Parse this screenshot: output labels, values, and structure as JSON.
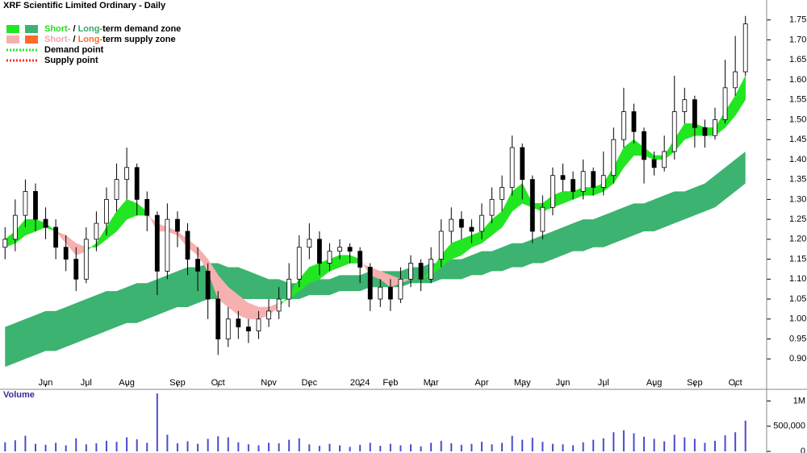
{
  "chart_data": {
    "type": "candlestick",
    "title": "XRF Scientific Limited Ordinary - Daily",
    "categories": [
      null,
      null,
      null,
      null,
      "Jun",
      null,
      null,
      null,
      "Jul",
      null,
      null,
      null,
      "Aug",
      null,
      null,
      null,
      null,
      "Sep",
      null,
      null,
      null,
      "Oct",
      null,
      null,
      null,
      null,
      "Nov",
      null,
      null,
      null,
      "Dec",
      null,
      null,
      null,
      null,
      "2024",
      null,
      null,
      "Feb",
      null,
      null,
      null,
      "Mar",
      null,
      null,
      null,
      null,
      "Apr",
      null,
      null,
      null,
      "May",
      null,
      null,
      null,
      "Jun",
      null,
      null,
      null,
      "Jul",
      null,
      null,
      null,
      null,
      "Aug",
      null,
      null,
      null,
      "Sep",
      null,
      null,
      null,
      "Oct",
      null
    ],
    "open": [
      1.18,
      1.2,
      1.26,
      1.32,
      1.25,
      1.23,
      1.18,
      1.15,
      1.1,
      1.2,
      1.24,
      1.3,
      1.35,
      1.38,
      1.3,
      1.26,
      1.12,
      1.25,
      1.22,
      1.15,
      1.12,
      1.05,
      0.95,
      1.0,
      0.98,
      0.97,
      1.0,
      1.02,
      1.05,
      1.1,
      1.18,
      1.2,
      1.14,
      1.17,
      1.18,
      1.17,
      1.13,
      1.05,
      1.08,
      1.05,
      1.1,
      1.14,
      1.1,
      1.15,
      1.22,
      1.25,
      1.23,
      1.22,
      1.26,
      1.3,
      1.33,
      1.43,
      1.35,
      1.22,
      1.28,
      1.36,
      1.35,
      1.32,
      1.37,
      1.33,
      1.36,
      1.45,
      1.52,
      1.47,
      1.4,
      1.38,
      1.42,
      1.52,
      1.55,
      1.48,
      1.46,
      1.5,
      1.58,
      1.62
    ],
    "high": [
      1.23,
      1.3,
      1.35,
      1.34,
      1.28,
      1.25,
      1.21,
      1.18,
      1.23,
      1.27,
      1.33,
      1.39,
      1.43,
      1.39,
      1.32,
      1.27,
      1.29,
      1.27,
      1.24,
      1.18,
      1.14,
      1.07,
      1.03,
      1.02,
      1.0,
      1.02,
      1.05,
      1.08,
      1.14,
      1.21,
      1.24,
      1.22,
      1.19,
      1.2,
      1.19,
      1.18,
      1.14,
      1.1,
      1.1,
      1.13,
      1.16,
      1.15,
      1.18,
      1.25,
      1.28,
      1.27,
      1.25,
      1.29,
      1.33,
      1.36,
      1.46,
      1.44,
      1.36,
      1.31,
      1.38,
      1.39,
      1.37,
      1.4,
      1.38,
      1.42,
      1.48,
      1.58,
      1.54,
      1.48,
      1.42,
      1.46,
      1.61,
      1.58,
      1.56,
      1.5,
      1.53,
      1.65,
      1.71,
      1.76
    ],
    "low": [
      1.15,
      1.17,
      1.23,
      1.22,
      1.2,
      1.15,
      1.12,
      1.07,
      1.09,
      1.17,
      1.21,
      1.27,
      1.3,
      1.26,
      1.22,
      1.06,
      1.1,
      1.18,
      1.11,
      1.07,
      1.0,
      0.91,
      0.93,
      0.95,
      0.94,
      0.95,
      0.98,
      1.0,
      1.03,
      1.08,
      1.15,
      1.11,
      1.12,
      1.15,
      1.14,
      1.09,
      1.02,
      1.03,
      1.02,
      1.04,
      1.08,
      1.07,
      1.09,
      1.13,
      1.19,
      1.2,
      1.19,
      1.2,
      1.24,
      1.27,
      1.31,
      1.3,
      1.19,
      1.2,
      1.26,
      1.32,
      1.3,
      1.3,
      1.31,
      1.31,
      1.34,
      1.43,
      1.44,
      1.34,
      1.36,
      1.37,
      1.4,
      1.49,
      1.43,
      1.43,
      1.45,
      1.49,
      1.56,
      1.61
    ],
    "close": [
      1.2,
      1.26,
      1.32,
      1.25,
      1.23,
      1.18,
      1.15,
      1.1,
      1.2,
      1.24,
      1.3,
      1.35,
      1.38,
      1.3,
      1.26,
      1.12,
      1.25,
      1.22,
      1.15,
      1.12,
      1.05,
      0.95,
      1.0,
      0.98,
      0.97,
      1.0,
      1.02,
      1.05,
      1.1,
      1.18,
      1.2,
      1.14,
      1.17,
      1.18,
      1.17,
      1.13,
      1.05,
      1.08,
      1.05,
      1.1,
      1.14,
      1.1,
      1.15,
      1.22,
      1.25,
      1.23,
      1.22,
      1.26,
      1.3,
      1.33,
      1.43,
      1.35,
      1.22,
      1.28,
      1.36,
      1.35,
      1.32,
      1.37,
      1.33,
      1.36,
      1.45,
      1.52,
      1.47,
      1.4,
      1.38,
      1.42,
      1.52,
      1.55,
      1.48,
      1.46,
      1.5,
      1.58,
      1.62,
      1.74
    ],
    "up_color": "#ffffff",
    "down_color": "#000000",
    "short_zone": {
      "fast": [
        1.2,
        1.22,
        1.25,
        1.25,
        1.24,
        1.22,
        1.19,
        1.16,
        1.17,
        1.19,
        1.23,
        1.27,
        1.3,
        1.29,
        1.27,
        1.22,
        1.22,
        1.21,
        1.18,
        1.16,
        1.12,
        1.05,
        1.03,
        1.01,
        1.0,
        1.0,
        1.01,
        1.03,
        1.06,
        1.1,
        1.13,
        1.14,
        1.15,
        1.16,
        1.16,
        1.15,
        1.11,
        1.1,
        1.08,
        1.09,
        1.1,
        1.1,
        1.12,
        1.16,
        1.19,
        1.2,
        1.21,
        1.22,
        1.25,
        1.27,
        1.32,
        1.34,
        1.29,
        1.29,
        1.31,
        1.32,
        1.32,
        1.33,
        1.33,
        1.34,
        1.38,
        1.43,
        1.45,
        1.43,
        1.41,
        1.41,
        1.45,
        1.49,
        1.49,
        1.48,
        1.48,
        1.52,
        1.56,
        1.61
      ],
      "slow": [
        1.18,
        1.19,
        1.21,
        1.22,
        1.23,
        1.22,
        1.21,
        1.19,
        1.18,
        1.18,
        1.2,
        1.22,
        1.25,
        1.26,
        1.26,
        1.24,
        1.23,
        1.22,
        1.2,
        1.18,
        1.15,
        1.11,
        1.08,
        1.06,
        1.04,
        1.03,
        1.03,
        1.04,
        1.05,
        1.07,
        1.09,
        1.1,
        1.12,
        1.13,
        1.14,
        1.14,
        1.13,
        1.12,
        1.11,
        1.1,
        1.1,
        1.1,
        1.11,
        1.13,
        1.15,
        1.16,
        1.18,
        1.19,
        1.21,
        1.23,
        1.27,
        1.29,
        1.28,
        1.27,
        1.28,
        1.29,
        1.3,
        1.31,
        1.31,
        1.32,
        1.34,
        1.38,
        1.41,
        1.41,
        1.4,
        1.4,
        1.42,
        1.45,
        1.46,
        1.46,
        1.46,
        1.48,
        1.51,
        1.55
      ],
      "demand_color": "#22e622",
      "supply_color": "#f7b0b0"
    },
    "long_zone": {
      "upper": [
        0.98,
        0.99,
        1.0,
        1.01,
        1.02,
        1.02,
        1.03,
        1.04,
        1.05,
        1.06,
        1.07,
        1.07,
        1.08,
        1.09,
        1.09,
        1.1,
        1.11,
        1.12,
        1.13,
        1.13,
        1.14,
        1.14,
        1.13,
        1.13,
        1.12,
        1.11,
        1.1,
        1.1,
        1.09,
        1.09,
        1.1,
        1.1,
        1.1,
        1.11,
        1.11,
        1.11,
        1.12,
        1.12,
        1.12,
        1.12,
        1.13,
        1.13,
        1.14,
        1.14,
        1.15,
        1.15,
        1.16,
        1.17,
        1.17,
        1.18,
        1.19,
        1.19,
        1.2,
        1.21,
        1.22,
        1.23,
        1.24,
        1.25,
        1.25,
        1.26,
        1.27,
        1.28,
        1.29,
        1.29,
        1.3,
        1.31,
        1.32,
        1.32,
        1.33,
        1.34,
        1.36,
        1.38,
        1.4,
        1.42
      ],
      "lower": [
        0.88,
        0.89,
        0.9,
        0.91,
        0.92,
        0.92,
        0.93,
        0.94,
        0.95,
        0.96,
        0.97,
        0.98,
        0.99,
        0.99,
        1.0,
        1.01,
        1.02,
        1.03,
        1.03,
        1.04,
        1.05,
        1.05,
        1.05,
        1.05,
        1.05,
        1.05,
        1.05,
        1.05,
        1.05,
        1.05,
        1.06,
        1.06,
        1.06,
        1.07,
        1.07,
        1.07,
        1.08,
        1.08,
        1.08,
        1.08,
        1.09,
        1.09,
        1.09,
        1.1,
        1.1,
        1.1,
        1.11,
        1.11,
        1.12,
        1.12,
        1.13,
        1.13,
        1.14,
        1.14,
        1.15,
        1.16,
        1.17,
        1.17,
        1.18,
        1.18,
        1.19,
        1.2,
        1.21,
        1.22,
        1.22,
        1.23,
        1.24,
        1.25,
        1.26,
        1.27,
        1.28,
        1.3,
        1.32,
        1.34
      ],
      "color": "#3cb371"
    },
    "ylim": [
      0.85,
      1.8
    ],
    "yticks": [
      {
        "value": 0.9,
        "label": "0.90"
      },
      0.95,
      {
        "value": 1,
        "label": "1.00"
      },
      1.05,
      {
        "value": 1.1,
        "label": "1.10"
      },
      1.15,
      {
        "value": 1.2,
        "label": "1.20"
      },
      1.25,
      {
        "value": 1.3,
        "label": "1.30"
      },
      1.35,
      {
        "value": 1.4,
        "label": "1.40"
      },
      1.45,
      {
        "value": 1.5,
        "label": "1.50"
      },
      1.55,
      {
        "value": 1.6,
        "label": "1.60"
      },
      1.65,
      {
        "value": 1.7,
        "label": "1.70"
      },
      1.75
    ],
    "legend": [
      {
        "parts": [
          "Short-",
          " / ",
          "Long-",
          "term demand zone"
        ],
        "part_colors": [
          "#22dd22",
          "#000000",
          "#33aa66",
          "#000000"
        ],
        "swatches": [
          "#22e622",
          "#3cb371"
        ],
        "style": "box"
      },
      {
        "parts": [
          "Short-",
          " / ",
          "Long-",
          "term supply zone"
        ],
        "part_colors": [
          "#f5a5a5",
          "#000000",
          "#ff6a2a",
          "#000000"
        ],
        "swatches": [
          "#f7b0b0",
          "#ff6a2a"
        ],
        "style": "box"
      },
      {
        "parts": [
          "Demand point"
        ],
        "part_colors": [
          "#000000"
        ],
        "swatches": [
          "#22e622"
        ],
        "style": "dotted"
      },
      {
        "parts": [
          "Supply point"
        ],
        "part_colors": [
          "#000000"
        ],
        "swatches": [
          "#ff2a2a"
        ],
        "style": "dotted"
      }
    ],
    "volume": {
      "label": "Volume",
      "values": [
        180000,
        220000,
        310000,
        150000,
        130000,
        170000,
        120000,
        260000,
        140000,
        160000,
        210000,
        190000,
        280000,
        240000,
        170000,
        1150000,
        330000,
        160000,
        200000,
        150000,
        250000,
        300000,
        280000,
        180000,
        140000,
        120000,
        170000,
        160000,
        230000,
        260000,
        140000,
        110000,
        150000,
        120000,
        90000,
        130000,
        170000,
        110000,
        150000,
        120000,
        140000,
        100000,
        170000,
        210000,
        160000,
        130000,
        150000,
        190000,
        140000,
        170000,
        310000,
        230000,
        270000,
        190000,
        150000,
        140000,
        120000,
        180000,
        230000,
        260000,
        380000,
        420000,
        360000,
        290000,
        250000,
        200000,
        330000,
        280000,
        250000,
        170000,
        210000,
        320000,
        380000,
        610000
      ],
      "color": "#4b4bd0",
      "ylim": [
        0,
        1200000
      ],
      "yticks": [
        0,
        {
          "value": 500000,
          "label": "500,000"
        },
        {
          "value": 1000000,
          "label": "1M"
        }
      ]
    }
  }
}
